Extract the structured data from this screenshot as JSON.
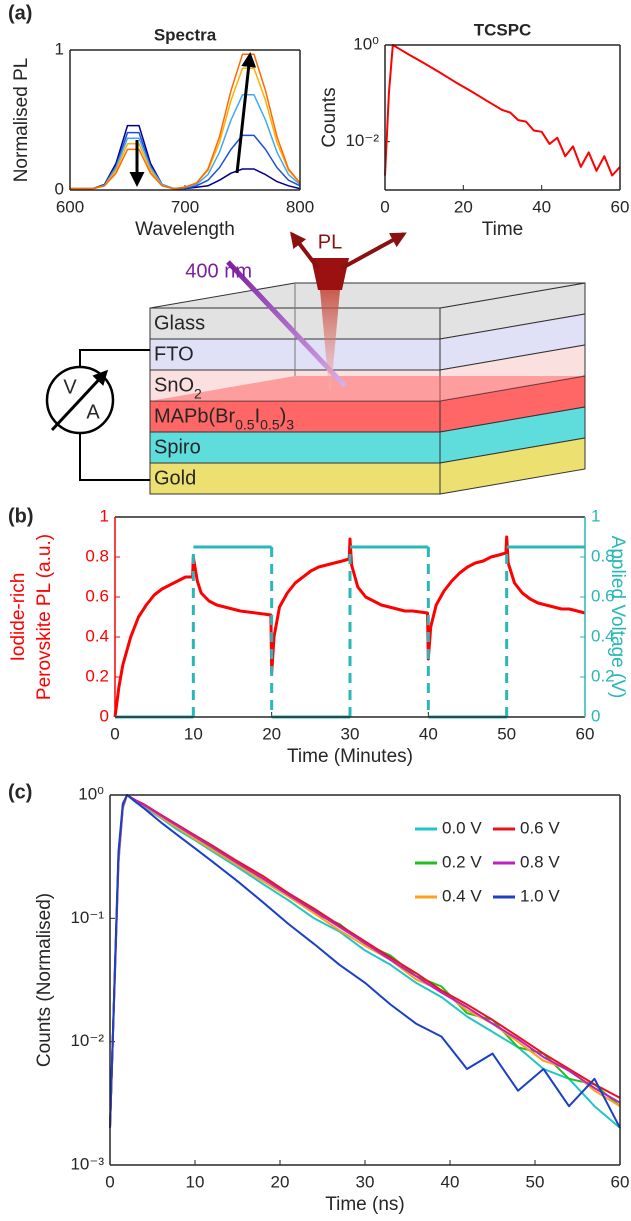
{
  "chart_data": [
    {
      "type": "line",
      "title": "Spectra",
      "xlabel": "Wavelength",
      "ylabel": "Normalised PL",
      "x": [
        600,
        610,
        620,
        630,
        640,
        650,
        660,
        670,
        680,
        690,
        700,
        710,
        720,
        730,
        740,
        750,
        760,
        770,
        780,
        790,
        800
      ],
      "series": [
        {
          "color": "#00008b",
          "values": [
            0.01,
            0.01,
            0.01,
            0.04,
            0.19,
            0.46,
            0.46,
            0.19,
            0.04,
            0.01,
            0.01,
            0.02,
            0.03,
            0.07,
            0.12,
            0.15,
            0.15,
            0.11,
            0.06,
            0.03,
            0.01
          ]
        },
        {
          "color": "#1f4fd8",
          "values": [
            0.01,
            0.01,
            0.01,
            0.04,
            0.17,
            0.41,
            0.41,
            0.17,
            0.04,
            0.01,
            0.01,
            0.03,
            0.07,
            0.16,
            0.29,
            0.39,
            0.39,
            0.29,
            0.16,
            0.07,
            0.03
          ]
        },
        {
          "color": "#3fa9f5",
          "values": [
            0.01,
            0.01,
            0.01,
            0.03,
            0.16,
            0.37,
            0.37,
            0.16,
            0.04,
            0.01,
            0.02,
            0.04,
            0.11,
            0.27,
            0.5,
            0.68,
            0.68,
            0.5,
            0.27,
            0.11,
            0.04
          ]
        },
        {
          "color": "#ffb000",
          "values": [
            0.01,
            0.01,
            0.01,
            0.03,
            0.14,
            0.33,
            0.33,
            0.14,
            0.03,
            0.01,
            0.02,
            0.05,
            0.14,
            0.34,
            0.64,
            0.87,
            0.87,
            0.64,
            0.34,
            0.14,
            0.05
          ]
        },
        {
          "color": "#ff6a00",
          "values": [
            0.01,
            0.01,
            0.01,
            0.03,
            0.12,
            0.29,
            0.29,
            0.12,
            0.03,
            0.01,
            0.02,
            0.05,
            0.15,
            0.38,
            0.71,
            0.97,
            0.97,
            0.71,
            0.38,
            0.15,
            0.05
          ]
        }
      ],
      "xlim": [
        600,
        800
      ],
      "xticks": [
        600,
        700,
        800
      ],
      "ylim": [
        0,
        1
      ],
      "yticks": [
        0,
        1
      ]
    },
    {
      "type": "line",
      "title": "TCSPC",
      "xlabel": "Time",
      "ylabel": "Counts",
      "log_y": true,
      "x": [
        0,
        1,
        2,
        4,
        6,
        8,
        10,
        14,
        18,
        22,
        26,
        30,
        32,
        34,
        36,
        38,
        40,
        42,
        44,
        46,
        48,
        50,
        52,
        54,
        56,
        58,
        60
      ],
      "series": [
        {
          "color": "#ff0000",
          "values": [
            0.002,
            0.1,
            1,
            0.8,
            0.64,
            0.52,
            0.42,
            0.27,
            0.17,
            0.11,
            0.07,
            0.045,
            0.04,
            0.028,
            0.026,
            0.017,
            0.016,
            0.009,
            0.012,
            0.005,
            0.008,
            0.003,
            0.006,
            0.0025,
            0.005,
            0.002,
            0.003
          ]
        }
      ],
      "xlim": [
        0,
        60
      ],
      "xticks": [
        0,
        20,
        40,
        60
      ],
      "ylim": [
        0.001,
        1
      ],
      "yticks": [
        {
          "value": 1,
          "label": "10⁰"
        },
        {
          "value": 0.01,
          "label": "10⁻²"
        }
      ]
    },
    {
      "type": "line",
      "xlabel": "Time (Minutes)",
      "ylabel": [
        "Iodide-rich",
        "Perovskite PL (a.u.)"
      ],
      "y2label": "Applied Voltage (V)",
      "ycolor": "#ff0000",
      "y2color": "#2ab7b7",
      "series": [
        {
          "color": "#ff0000",
          "x": [
            0,
            0.5,
            1,
            2,
            3,
            4,
            5,
            6,
            7,
            8,
            9,
            9.9,
            10,
            10.5,
            11,
            12,
            13,
            14,
            15,
            16,
            18,
            19.9,
            20,
            20.3,
            21,
            22,
            23,
            24,
            25,
            26,
            27,
            28,
            29,
            29.9,
            30,
            30.2,
            31,
            32,
            33,
            34,
            35,
            36,
            37,
            38,
            39.9,
            40,
            40.3,
            41,
            42,
            43,
            44,
            45,
            46,
            47,
            48,
            49,
            49.9,
            50,
            50.2,
            51,
            52,
            53,
            54,
            55,
            56,
            57,
            58,
            59,
            60
          ],
          "values": [
            0,
            0.15,
            0.26,
            0.4,
            0.5,
            0.56,
            0.61,
            0.64,
            0.66,
            0.68,
            0.7,
            0.7,
            0.8,
            0.68,
            0.62,
            0.58,
            0.56,
            0.55,
            0.54,
            0.53,
            0.52,
            0.51,
            0.22,
            0.4,
            0.55,
            0.62,
            0.67,
            0.7,
            0.73,
            0.75,
            0.76,
            0.77,
            0.78,
            0.79,
            0.89,
            0.76,
            0.65,
            0.6,
            0.58,
            0.56,
            0.55,
            0.54,
            0.53,
            0.53,
            0.52,
            0.29,
            0.45,
            0.56,
            0.63,
            0.68,
            0.72,
            0.75,
            0.77,
            0.78,
            0.8,
            0.81,
            0.82,
            0.9,
            0.77,
            0.67,
            0.62,
            0.59,
            0.57,
            0.56,
            0.55,
            0.54,
            0.54,
            0.53,
            0.52
          ]
        },
        {
          "color": "#2ab7b7",
          "axis": "y2",
          "x": [
            0,
            10,
            10,
            20,
            20,
            30,
            30,
            40,
            40,
            50,
            50,
            60
          ],
          "values": [
            0,
            0,
            0.85,
            0.85,
            0,
            0,
            0.85,
            0.85,
            0,
            0,
            0.85,
            0.85
          ]
        }
      ],
      "xlim": [
        0,
        60
      ],
      "xticks": [
        0,
        10,
        20,
        30,
        40,
        50,
        60
      ],
      "ylim": [
        0,
        1
      ],
      "yticks": [
        0,
        0.2,
        0.4,
        0.6,
        0.8,
        1
      ],
      "y2lim": [
        0,
        1
      ],
      "y2ticks": [
        0,
        0.2,
        0.4,
        0.6,
        0.8,
        1
      ]
    },
    {
      "type": "line",
      "xlabel": "Time (ns)",
      "ylabel": "Counts (Normalised)",
      "log_y": true,
      "legend": "upper right",
      "x": [
        0,
        1,
        1.5,
        2,
        3,
        4,
        6,
        8,
        10,
        12,
        15,
        18,
        21,
        24,
        27,
        30,
        33,
        36,
        39,
        42,
        45,
        48,
        51,
        54,
        57,
        60
      ],
      "series": [
        {
          "name": "0.0 V",
          "color": "#1fc6c6",
          "values": [
            0.002,
            0.3,
            0.8,
            1,
            0.88,
            0.8,
            0.65,
            0.52,
            0.43,
            0.35,
            0.26,
            0.19,
            0.14,
            0.1,
            0.078,
            0.055,
            0.042,
            0.03,
            0.023,
            0.016,
            0.012,
            0.009,
            0.006,
            0.005,
            0.003,
            0.002
          ]
        },
        {
          "name": "0.2 V",
          "color": "#20c020",
          "values": [
            0.002,
            0.28,
            0.78,
            1,
            0.9,
            0.82,
            0.67,
            0.55,
            0.45,
            0.37,
            0.28,
            0.21,
            0.16,
            0.11,
            0.09,
            0.062,
            0.05,
            0.034,
            0.028,
            0.017,
            0.015,
            0.009,
            0.008,
            0.005,
            0.0045,
            0.003
          ]
        },
        {
          "name": "0.4 V",
          "color": "#ff9f1a",
          "values": [
            0.002,
            0.3,
            0.8,
            1,
            0.9,
            0.82,
            0.66,
            0.54,
            0.44,
            0.36,
            0.27,
            0.2,
            0.15,
            0.11,
            0.08,
            0.06,
            0.046,
            0.032,
            0.026,
            0.018,
            0.014,
            0.01,
            0.007,
            0.006,
            0.004,
            0.003
          ]
        },
        {
          "name": "0.6 V",
          "color": "#e8141c",
          "values": [
            0.002,
            0.32,
            0.82,
            1,
            0.91,
            0.84,
            0.69,
            0.57,
            0.47,
            0.39,
            0.29,
            0.22,
            0.16,
            0.12,
            0.088,
            0.065,
            0.048,
            0.036,
            0.026,
            0.02,
            0.015,
            0.011,
            0.008,
            0.006,
            0.0045,
            0.0035
          ]
        },
        {
          "name": "0.8 V",
          "color": "#c020c0",
          "values": [
            0.002,
            0.31,
            0.81,
            1,
            0.9,
            0.83,
            0.68,
            0.56,
            0.46,
            0.38,
            0.28,
            0.21,
            0.155,
            0.115,
            0.085,
            0.063,
            0.046,
            0.034,
            0.025,
            0.019,
            0.014,
            0.0105,
            0.0075,
            0.0058,
            0.0042,
            0.0032
          ]
        },
        {
          "name": "1.0 V",
          "color": "#1a3fc8",
          "values": [
            0.002,
            0.35,
            0.85,
            1,
            0.88,
            0.78,
            0.6,
            0.47,
            0.37,
            0.29,
            0.2,
            0.135,
            0.09,
            0.062,
            0.042,
            0.03,
            0.02,
            0.014,
            0.011,
            0.006,
            0.008,
            0.004,
            0.006,
            0.003,
            0.005,
            0.002
          ]
        }
      ],
      "xlim": [
        0,
        60
      ],
      "xticks": [
        0,
        10,
        20,
        30,
        40,
        50,
        60
      ],
      "ylim": [
        0.001,
        1
      ],
      "yticks": [
        {
          "value": 0.001,
          "label": "10⁻³"
        },
        {
          "value": 0.01,
          "label": "10⁻²"
        },
        {
          "value": 0.1,
          "label": "10⁻¹"
        },
        {
          "value": 1,
          "label": "10⁰"
        }
      ]
    }
  ],
  "diagram": {
    "panel_labels": [
      "(a)",
      "(b)",
      "(c)"
    ],
    "laser": "400 nm",
    "emission": "PL",
    "meter": [
      "V",
      "A"
    ],
    "layers": [
      {
        "label": [
          "Glass"
        ],
        "color": "#e2e2e2"
      },
      {
        "label": [
          "FTO"
        ],
        "color": "#e0e0f6"
      },
      {
        "label": [
          "SnO",
          "2"
        ],
        "color": "#fbe0e0"
      },
      {
        "label": [
          "MAPb(Br",
          "0.5",
          "I",
          "0.5",
          ")",
          "3"
        ],
        "color": "#ff6666"
      },
      {
        "label": [
          "Spiro"
        ],
        "color": "#5fdcdc"
      },
      {
        "label": [
          "Gold"
        ],
        "color": "#ece070"
      }
    ]
  }
}
